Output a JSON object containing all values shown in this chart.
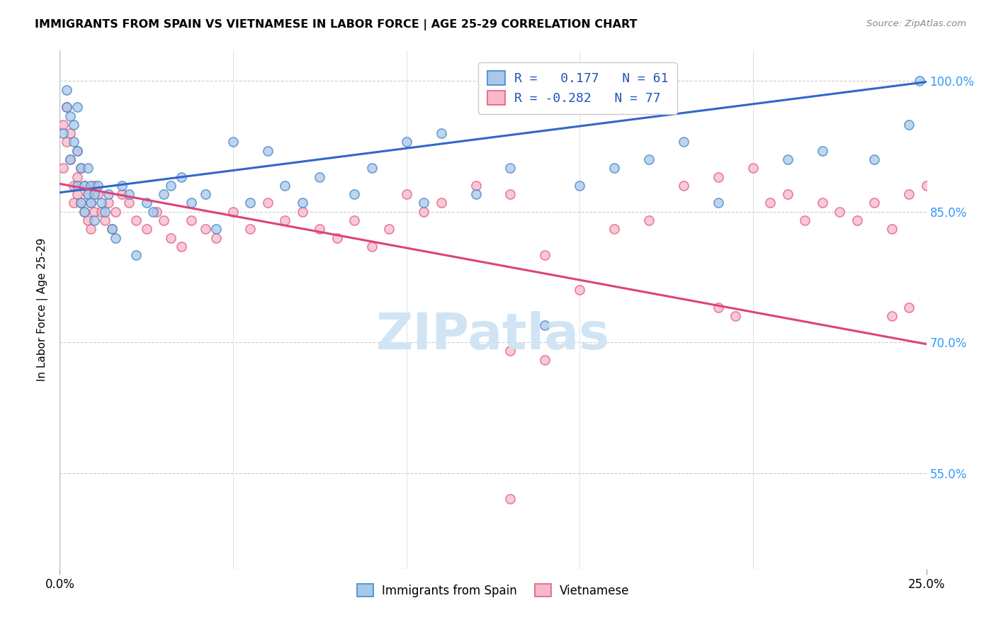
{
  "title": "IMMIGRANTS FROM SPAIN VS VIETNAMESE IN LABOR FORCE | AGE 25-29 CORRELATION CHART",
  "source": "Source: ZipAtlas.com",
  "ylabel": "In Labor Force | Age 25-29",
  "y_ticks": [
    0.55,
    0.7,
    0.85,
    1.0
  ],
  "y_tick_labels": [
    "55.0%",
    "70.0%",
    "85.0%",
    "100.0%"
  ],
  "xlim": [
    0.0,
    0.25
  ],
  "ylim": [
    0.44,
    1.035
  ],
  "color_spain_fill": "#a8c8e8",
  "color_spain_edge": "#4488cc",
  "color_vietnam_fill": "#f8b8c8",
  "color_vietnam_edge": "#e06080",
  "color_spain_line": "#3366cc",
  "color_vietnam_line": "#dd4477",
  "watermark_color": "#d0e4f4",
  "spain_x": [
    0.001,
    0.002,
    0.002,
    0.003,
    0.003,
    0.004,
    0.004,
    0.005,
    0.005,
    0.005,
    0.006,
    0.006,
    0.007,
    0.007,
    0.008,
    0.008,
    0.009,
    0.009,
    0.01,
    0.01,
    0.011,
    0.012,
    0.013,
    0.014,
    0.015,
    0.016,
    0.018,
    0.02,
    0.022,
    0.025,
    0.027,
    0.03,
    0.032,
    0.035,
    0.038,
    0.042,
    0.045,
    0.05,
    0.055,
    0.06,
    0.065,
    0.07,
    0.075,
    0.085,
    0.09,
    0.1,
    0.105,
    0.11,
    0.12,
    0.13,
    0.14,
    0.15,
    0.16,
    0.17,
    0.18,
    0.19,
    0.21,
    0.22,
    0.235,
    0.245,
    0.248
  ],
  "spain_y": [
    0.94,
    0.97,
    0.99,
    0.96,
    0.91,
    0.95,
    0.93,
    0.88,
    0.92,
    0.97,
    0.86,
    0.9,
    0.88,
    0.85,
    0.87,
    0.9,
    0.86,
    0.88,
    0.87,
    0.84,
    0.88,
    0.86,
    0.85,
    0.87,
    0.83,
    0.82,
    0.88,
    0.87,
    0.8,
    0.86,
    0.85,
    0.87,
    0.88,
    0.89,
    0.86,
    0.87,
    0.83,
    0.93,
    0.86,
    0.92,
    0.88,
    0.86,
    0.89,
    0.87,
    0.9,
    0.93,
    0.86,
    0.94,
    0.87,
    0.9,
    0.72,
    0.88,
    0.9,
    0.91,
    0.93,
    0.86,
    0.91,
    0.92,
    0.91,
    0.95,
    1.0
  ],
  "vietnam_x": [
    0.001,
    0.001,
    0.002,
    0.002,
    0.003,
    0.003,
    0.004,
    0.004,
    0.005,
    0.005,
    0.005,
    0.006,
    0.006,
    0.007,
    0.007,
    0.008,
    0.008,
    0.009,
    0.009,
    0.01,
    0.01,
    0.011,
    0.012,
    0.013,
    0.014,
    0.015,
    0.016,
    0.018,
    0.02,
    0.022,
    0.025,
    0.028,
    0.03,
    0.032,
    0.035,
    0.038,
    0.042,
    0.045,
    0.05,
    0.055,
    0.06,
    0.065,
    0.07,
    0.075,
    0.08,
    0.085,
    0.09,
    0.095,
    0.1,
    0.105,
    0.11,
    0.12,
    0.13,
    0.14,
    0.15,
    0.16,
    0.17,
    0.18,
    0.19,
    0.2,
    0.21,
    0.22,
    0.23,
    0.24,
    0.25,
    0.245,
    0.235,
    0.225,
    0.215,
    0.205,
    0.13,
    0.14,
    0.19,
    0.195,
    0.24,
    0.245,
    0.13
  ],
  "vietnam_y": [
    0.95,
    0.9,
    0.97,
    0.93,
    0.91,
    0.94,
    0.88,
    0.86,
    0.92,
    0.89,
    0.87,
    0.9,
    0.86,
    0.88,
    0.85,
    0.87,
    0.84,
    0.86,
    0.83,
    0.88,
    0.85,
    0.87,
    0.85,
    0.84,
    0.86,
    0.83,
    0.85,
    0.87,
    0.86,
    0.84,
    0.83,
    0.85,
    0.84,
    0.82,
    0.81,
    0.84,
    0.83,
    0.82,
    0.85,
    0.83,
    0.86,
    0.84,
    0.85,
    0.83,
    0.82,
    0.84,
    0.81,
    0.83,
    0.87,
    0.85,
    0.86,
    0.88,
    0.87,
    0.8,
    0.76,
    0.83,
    0.84,
    0.88,
    0.89,
    0.9,
    0.87,
    0.86,
    0.84,
    0.83,
    0.88,
    0.87,
    0.86,
    0.85,
    0.84,
    0.86,
    0.69,
    0.68,
    0.74,
    0.73,
    0.73,
    0.74,
    0.52
  ],
  "spain_line_x": [
    0.0,
    0.25
  ],
  "spain_line_y": [
    0.872,
    0.999
  ],
  "vietnam_line_x": [
    0.0,
    0.25
  ],
  "vietnam_line_y": [
    0.882,
    0.698
  ]
}
